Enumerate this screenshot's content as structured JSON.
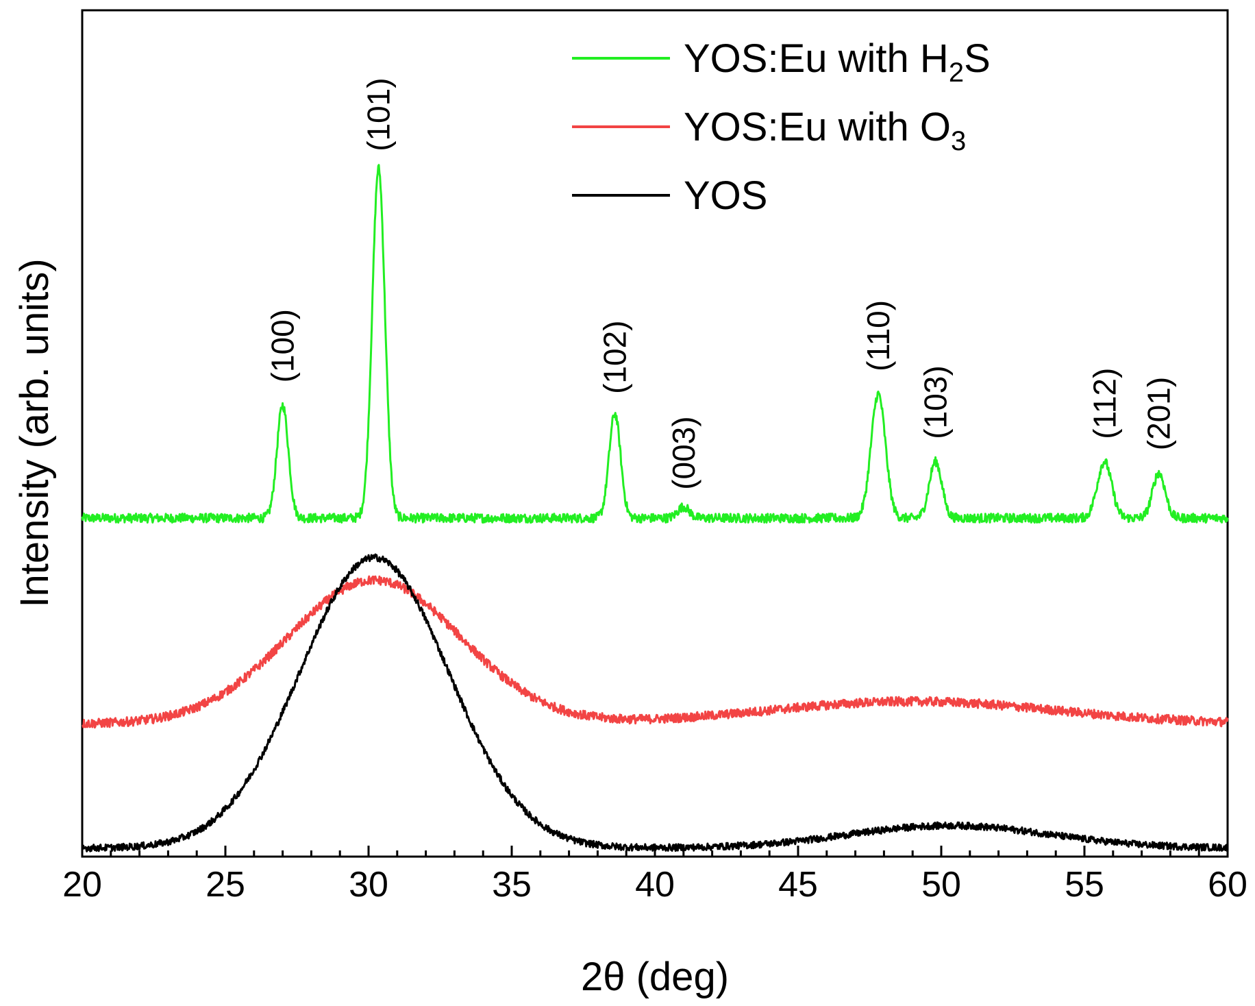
{
  "chart_data": {
    "type": "line",
    "title": "",
    "xlabel": "2θ (deg)",
    "ylabel": "Intensity (arb. units)",
    "xlim": [
      20,
      60
    ],
    "ylim": [
      0,
      1.5
    ],
    "x_ticks": [
      20,
      25,
      30,
      35,
      40,
      45,
      50,
      55,
      60
    ],
    "x_tick_labels": [
      "20",
      "25",
      "30",
      "35",
      "40",
      "45",
      "50",
      "55",
      "60"
    ],
    "grid": false,
    "legend_position": "top-right",
    "series": [
      {
        "name": "YOS:Eu with H2S",
        "legend": {
          "base": "YOS:Eu with H",
          "sub": "2",
          "tail": "S"
        },
        "color": "#22ee22",
        "baseline": 0.6,
        "noise": 0.008,
        "peaks": [
          {
            "x": 27.0,
            "height": 0.2,
            "width": 0.2
          },
          {
            "x": 30.35,
            "height": 0.62,
            "width": 0.22
          },
          {
            "x": 38.6,
            "height": 0.185,
            "width": 0.2
          },
          {
            "x": 41.0,
            "height": 0.02,
            "width": 0.2
          },
          {
            "x": 47.8,
            "height": 0.22,
            "width": 0.25
          },
          {
            "x": 49.8,
            "height": 0.1,
            "width": 0.22
          },
          {
            "x": 55.7,
            "height": 0.1,
            "width": 0.25
          },
          {
            "x": 57.6,
            "height": 0.08,
            "width": 0.22
          }
        ],
        "humps": []
      },
      {
        "name": "YOS:Eu with O3",
        "legend": {
          "base": "YOS:Eu with O",
          "sub": "3",
          "tail": ""
        },
        "color": "#f24444",
        "baseline": 0.235,
        "noise": 0.008,
        "peaks": [],
        "humps": [
          {
            "x": 30.2,
            "height": 0.255,
            "width": 3.0
          },
          {
            "x": 49.0,
            "height": 0.04,
            "width": 5.0
          }
        ]
      },
      {
        "name": "YOS",
        "legend": {
          "base": "YOS",
          "sub": "",
          "tail": ""
        },
        "color": "#000000",
        "baseline": 0.015,
        "noise": 0.006,
        "peaks": [],
        "humps": [
          {
            "x": 30.2,
            "height": 0.515,
            "width": 2.6
          },
          {
            "x": 50.3,
            "height": 0.04,
            "width": 3.5
          }
        ]
      }
    ],
    "annotations": [
      {
        "text": "(100)",
        "x": 27.0,
        "y": 0.84
      },
      {
        "text": "(101)",
        "x": 30.35,
        "y": 1.25
      },
      {
        "text": "(102)",
        "x": 38.6,
        "y": 0.82
      },
      {
        "text": "(003)",
        "x": 41.0,
        "y": 0.65
      },
      {
        "text": "(110)",
        "x": 47.8,
        "y": 0.86
      },
      {
        "text": "(103)",
        "x": 49.8,
        "y": 0.74
      },
      {
        "text": "(112)",
        "x": 55.7,
        "y": 0.74
      },
      {
        "text": "(201)",
        "x": 57.6,
        "y": 0.72
      }
    ]
  }
}
